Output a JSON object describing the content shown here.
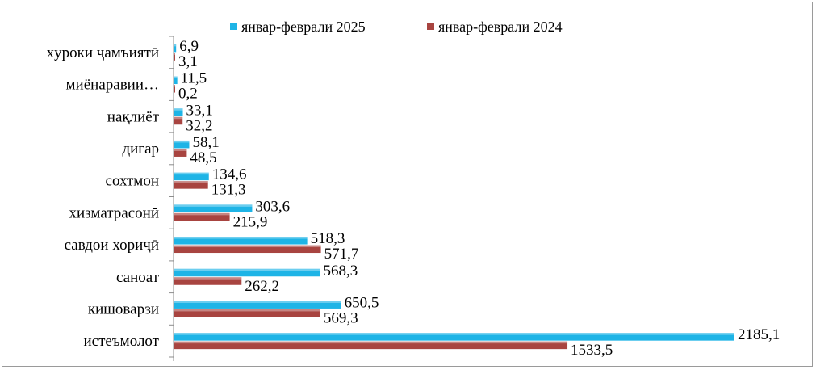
{
  "colors": {
    "series_2025": "#1eb4e6",
    "series_2024": "#a84440",
    "axis": "#8c8c8c"
  },
  "chart_data": {
    "type": "bar",
    "orientation": "horizontal",
    "categories": [
      "хӯроки ҷамъиятӣ",
      "миёнаравии…",
      "нақлиёт",
      "дигар",
      "сохтмон",
      "хизматрасонӣ",
      "савдои хориҷӣ",
      "саноат",
      "кишоварзӣ",
      "истеъмолот"
    ],
    "series": [
      {
        "name": "январ-феврали 2025",
        "values": [
          6.9,
          11.5,
          33.1,
          58.1,
          134.6,
          303.6,
          518.3,
          568.3,
          650.5,
          2185.1
        ],
        "labels": [
          "6,9",
          "11,5",
          "33,1",
          "58,1",
          "134,6",
          "303,6",
          "518,3",
          "568,3",
          "650,5",
          "2185,1"
        ]
      },
      {
        "name": "январ-феврали 2024",
        "values": [
          3.1,
          0.2,
          32.2,
          48.5,
          131.3,
          215.9,
          571.7,
          262.2,
          569.3,
          1533.5
        ],
        "labels": [
          "3,1",
          "0,2",
          "32,2",
          "48,5",
          "131,3",
          "215,9",
          "571,7",
          "262,2",
          "569,3",
          "1533,5"
        ]
      }
    ],
    "legend_position": "top",
    "grid": false,
    "xlim": [
      0,
      2200
    ]
  }
}
